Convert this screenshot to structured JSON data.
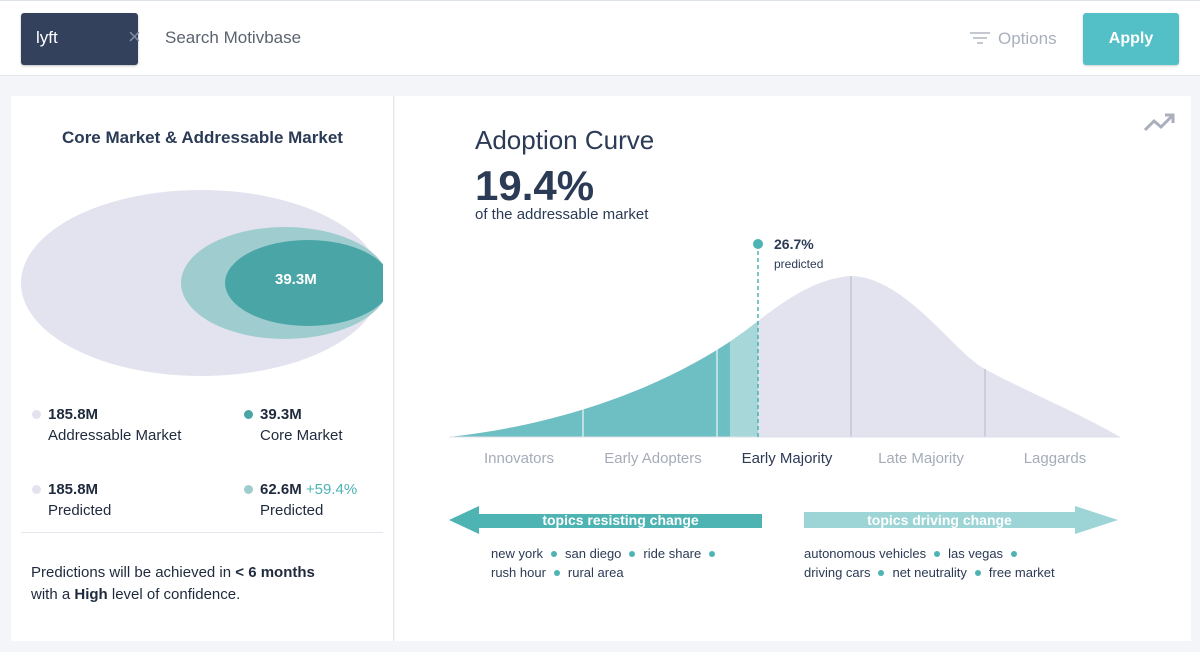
{
  "search": {
    "tag_label": "lyft",
    "placeholder": "Search Motivbase",
    "options_label": "Options",
    "apply_label": "Apply"
  },
  "market": {
    "title": "Core Market & Addressable Market",
    "venn_label": "39.3M",
    "stats": [
      {
        "value": "185.8M",
        "label": "Addressable Market",
        "change": "",
        "color": "#e2e3ee"
      },
      {
        "value": "39.3M",
        "label": "Core Market",
        "change": "",
        "color": "#4aa6a6"
      },
      {
        "value": "185.8M",
        "label": "Predicted",
        "change": "",
        "color": "#e2e3ee"
      },
      {
        "value": "62.6M",
        "label": "Predicted",
        "change": "+59.4%",
        "color": "#9fcdcf"
      }
    ],
    "prediction": {
      "line1_prefix": "Predictions will be achieved in ",
      "line1_bold": "< 6 months",
      "line2_prefix": "with a ",
      "line2_bold": "High",
      "line2_suffix": " level of confidence."
    }
  },
  "adoption": {
    "title": "Adoption Curve",
    "percent": "19.4%",
    "subtitle": "of the addressable market",
    "predicted_value": "26.7%",
    "predicted_label": "predicted",
    "segments": [
      "Innovators",
      "Early Adopters",
      "Early Majority",
      "Late Majority",
      "Laggards"
    ],
    "active_segment": "Early Majority",
    "resisting": {
      "label": "topics resisting change",
      "rows": [
        [
          "new york",
          "san diego",
          "ride share"
        ],
        [
          "rush hour",
          "rural area"
        ]
      ]
    },
    "driving": {
      "label": "topics driving change",
      "rows": [
        [
          "autonomous vehicles",
          "las vegas"
        ],
        [
          "driving cars",
          "net neutrality",
          "free market"
        ]
      ]
    }
  },
  "colors": {
    "accent": "#53bfc6",
    "teal_dark": "#4aa6a6",
    "teal_light": "#9fcdcf",
    "lavender": "#e2e3ee",
    "navy": "#33415c"
  }
}
